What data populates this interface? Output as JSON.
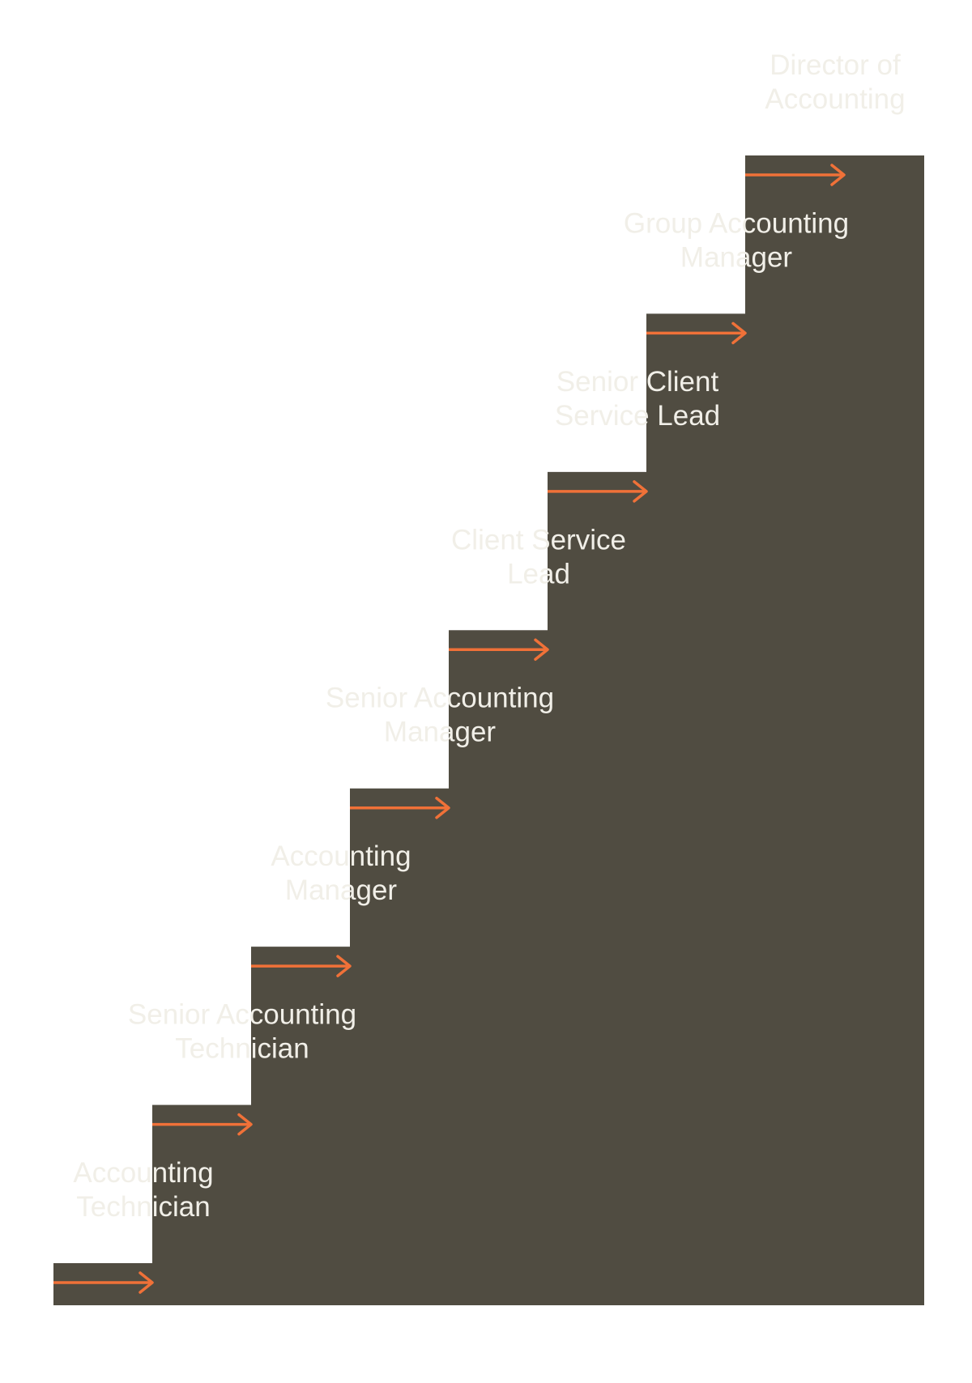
{
  "colors": {
    "background": "#ffffff",
    "step": "#504c41",
    "step_shadow": "#35322b",
    "arrow": "#f07138",
    "label": "#f1efe8"
  },
  "steps": [
    {
      "label_lines": [
        "Accounting",
        "Technician"
      ]
    },
    {
      "label_lines": [
        "Senior Accounting",
        "Technician"
      ]
    },
    {
      "label_lines": [
        "Accounting",
        "Manager"
      ]
    },
    {
      "label_lines": [
        "Senior Accounting",
        "Manager"
      ]
    },
    {
      "label_lines": [
        "Client Service",
        "Lead"
      ]
    },
    {
      "label_lines": [
        "Senior Client",
        "Service Lead"
      ]
    },
    {
      "label_lines": [
        "Group Accounting",
        "Manager"
      ]
    },
    {
      "label_lines": [
        "Director of",
        "Accounting"
      ]
    }
  ]
}
